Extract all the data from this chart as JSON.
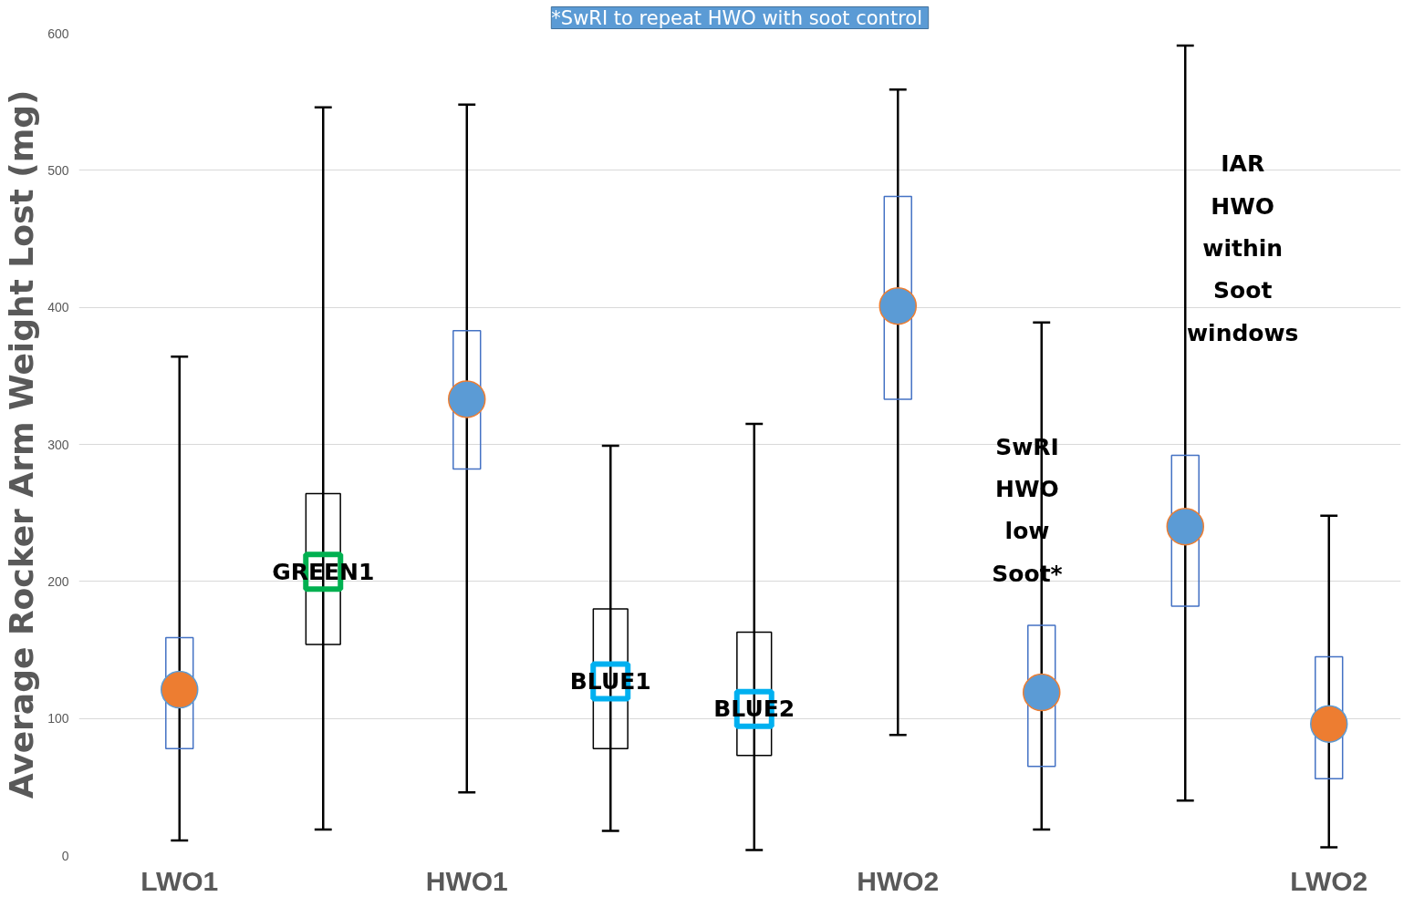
{
  "chart_data": {
    "type": "candlestick",
    "ylabel": "Average Rocker Arm Weight Lost (mg)",
    "categories": [
      "LWO1",
      null,
      "HWO1",
      null,
      null,
      "HWO2",
      null,
      null,
      "LWO2"
    ],
    "ylim": [
      0,
      600
    ],
    "yticks": [
      0,
      100,
      200,
      300,
      400,
      500,
      600
    ],
    "grid": "y",
    "ohlc": [
      [
        78,
        364,
        11,
        159
      ],
      [
        154,
        546,
        19,
        264
      ],
      [
        282,
        548,
        46,
        383
      ],
      [
        78,
        299,
        18,
        180
      ],
      [
        73,
        315,
        4,
        163
      ],
      [
        333,
        559,
        88,
        481
      ],
      [
        65,
        389,
        19,
        168
      ],
      [
        182,
        591,
        40,
        292
      ],
      [
        56,
        248,
        6,
        145
      ]
    ],
    "colors": [
      "#4472c4",
      "#000000",
      "#4472c4",
      "#000000",
      "#000000",
      "#4472c4",
      "#4472c4",
      "#4472c4",
      "#4472c4"
    ],
    "series": [
      {
        "type": "scatter",
        "marker": "circle",
        "values": [
          121,
          null,
          333,
          null,
          null,
          401,
          119,
          240,
          96
        ],
        "colors": [
          "#ed7d31",
          null,
          "#5b9bd5",
          null,
          null,
          "#5b9bd5",
          "#5b9bd5",
          "#5b9bd5",
          "#ed7d31"
        ]
      },
      {
        "type": "scatter",
        "marker": "square",
        "values": [
          null,
          207,
          null,
          127,
          107,
          null,
          null,
          null,
          null
        ],
        "colors": [
          null,
          "#00b050",
          null,
          "#00b0f0",
          "#00b0f0",
          null,
          null,
          null,
          null
        ]
      }
    ],
    "annotations": [
      "*SwRI to repeat HWO  with soot control",
      {
        "text": "GREEN1",
        "y": 207
      },
      {
        "text": "BLUE1",
        "y": 127
      },
      {
        "text": "BLUE2",
        "y": 107
      },
      "SwRI HWO low Soot*",
      "IAR HWO within Soot windows"
    ]
  }
}
